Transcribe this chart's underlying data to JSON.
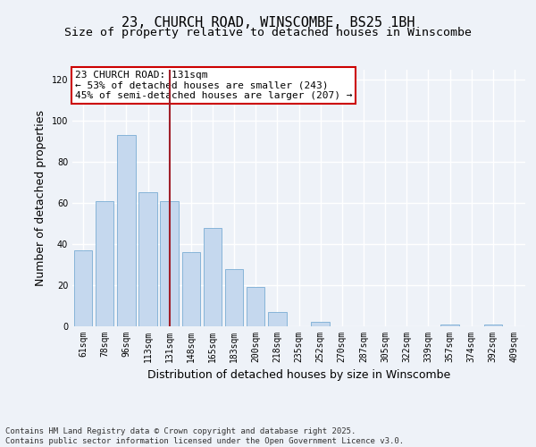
{
  "title": "23, CHURCH ROAD, WINSCOMBE, BS25 1BH",
  "subtitle": "Size of property relative to detached houses in Winscombe",
  "xlabel": "Distribution of detached houses by size in Winscombe",
  "ylabel": "Number of detached properties",
  "categories": [
    "61sqm",
    "78sqm",
    "96sqm",
    "113sqm",
    "131sqm",
    "148sqm",
    "165sqm",
    "183sqm",
    "200sqm",
    "218sqm",
    "235sqm",
    "252sqm",
    "270sqm",
    "287sqm",
    "305sqm",
    "322sqm",
    "339sqm",
    "357sqm",
    "374sqm",
    "392sqm",
    "409sqm"
  ],
  "values": [
    37,
    61,
    93,
    65,
    61,
    36,
    48,
    28,
    19,
    7,
    0,
    2,
    0,
    0,
    0,
    0,
    0,
    1,
    0,
    1,
    0
  ],
  "bar_color": "#c5d8ee",
  "bar_edge_color": "#7aadd4",
  "vline_index": 4,
  "vline_color": "#a0202a",
  "annotation_text": "23 CHURCH ROAD: 131sqm\n← 53% of detached houses are smaller (243)\n45% of semi-detached houses are larger (207) →",
  "annotation_box_color": "#ffffff",
  "annotation_box_edge_color": "#cc0000",
  "ylim": [
    0,
    125
  ],
  "yticks": [
    0,
    20,
    40,
    60,
    80,
    100,
    120
  ],
  "footnote": "Contains HM Land Registry data © Crown copyright and database right 2025.\nContains public sector information licensed under the Open Government Licence v3.0.",
  "bg_color": "#eef2f8",
  "plot_bg_color": "#eef2f8",
  "grid_color": "#ffffff",
  "title_fontsize": 11,
  "subtitle_fontsize": 9.5,
  "tick_fontsize": 7,
  "label_fontsize": 9,
  "annotation_fontsize": 8,
  "footnote_fontsize": 6.5
}
